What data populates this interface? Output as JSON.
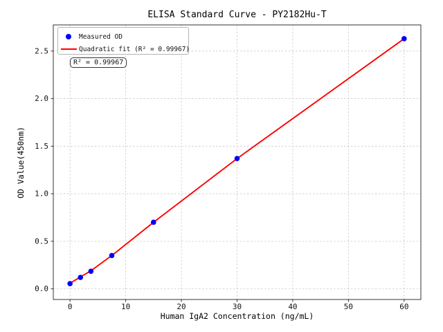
{
  "chart_data": {
    "type": "scatter",
    "title": "ELISA Standard Curve - PY2182Hu-T",
    "xlabel": "Human IgA2 Concentration (ng/mL)",
    "ylabel": "OD Value(450nm)",
    "xlim": [
      -3,
      63
    ],
    "ylim": [
      -0.112,
      2.775
    ],
    "grid": true,
    "legend_position": "upper-left",
    "xticks": {
      "values": [
        0,
        10,
        20,
        30,
        40,
        50,
        60
      ],
      "labels": [
        "0",
        "10",
        "20",
        "30",
        "40",
        "50",
        "60"
      ]
    },
    "yticks": {
      "values": [
        0.0,
        0.5,
        1.0,
        1.5,
        2.0,
        2.5
      ],
      "labels": [
        "0.0",
        "0.5",
        "1.0",
        "1.5",
        "2.0",
        "2.5"
      ]
    },
    "series": [
      {
        "name": "Measured OD",
        "type": "scatter",
        "color": "#0000ff",
        "x": [
          0,
          1.875,
          3.75,
          7.5,
          15,
          30,
          60
        ],
        "y": [
          0.055,
          0.12,
          0.185,
          0.35,
          0.7,
          1.37,
          2.63
        ]
      },
      {
        "name": "Quadratic fit (R² = 0.99967)",
        "type": "line",
        "color": "#ff0000",
        "x": [
          0,
          1.875,
          3.75,
          7.5,
          15,
          30,
          60
        ],
        "y": [
          0.058,
          0.125,
          0.19,
          0.35,
          0.7,
          1.37,
          2.63
        ]
      }
    ],
    "annotation": "R² = 0.99967",
    "colors": {
      "measured_points": "#0000ff",
      "fit_line": "#ff0000",
      "grid": "#c9c9c9",
      "axis": "#333333"
    }
  }
}
